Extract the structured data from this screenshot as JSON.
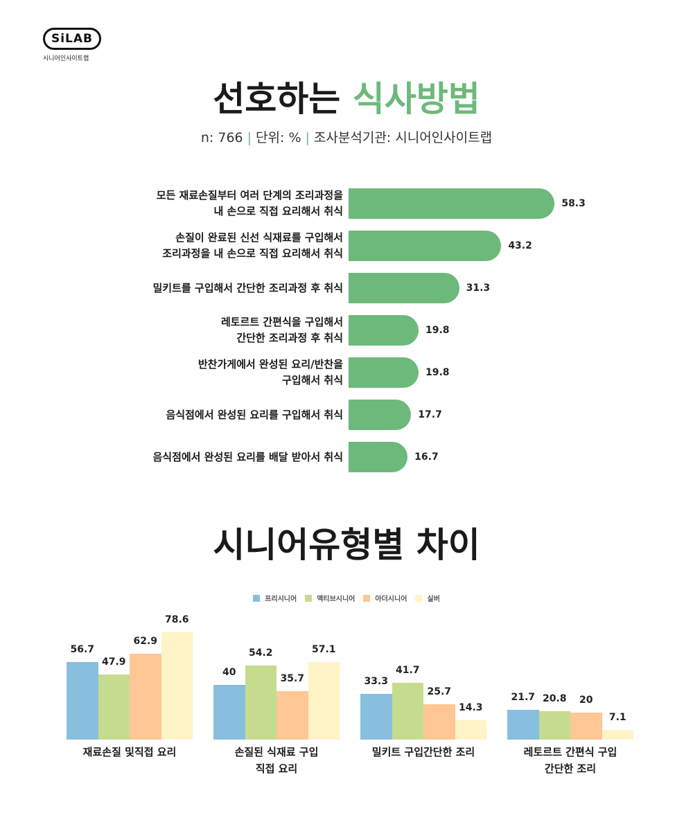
{
  "brand": {
    "logo_text": "SiLAB",
    "sub": "시니어인사이트랩"
  },
  "title": {
    "part1": "선호하는",
    "part2": "식사방법"
  },
  "subtitle": {
    "n": "n: 766",
    "unit": "단위: %",
    "source": "조사분석기관: 시니어인사이트랩",
    "separator": "|"
  },
  "colors": {
    "accent": "#6db97c",
    "pre": "#88bfdf",
    "active": "#c5dc8f",
    "other": "#fec794",
    "silver": "#fff3c8"
  },
  "chart_data": [
    {
      "type": "bar",
      "orientation": "horizontal",
      "title": "선호하는 식사방법",
      "categories": [
        "모든 재료손질부터 여러 단계의 조리과정을\n내 손으로 직접 요리해서 취식",
        "손질이 완료된 신선 식재료를 구입해서\n조리과정을 내 손으로 직접 요리해서 취식",
        "밀키트를 구입해서 간단한 조리과정 후 취식",
        "레토르트 간편식을 구입해서\n간단한 조리과정 후 취식",
        "반찬가게에서 완성된 요리/반찬을\n구입해서 취식",
        "음식점에서 완성된 요리를 구입해서 취식",
        "음식점에서 완성된 요리를 배달 받아서 취식"
      ],
      "values": [
        58.3,
        43.2,
        31.3,
        19.8,
        19.8,
        17.7,
        16.7
      ],
      "value_labels": [
        "58.3",
        "43.2",
        "31.3",
        "19.8",
        "19.8",
        "17.7",
        "16.7"
      ],
      "unit": "%"
    },
    {
      "type": "bar",
      "title": "시니어유형별 차이",
      "categories": [
        "재료손질 및직접 요리",
        "손질된 식재료 구입\n직접 요리",
        "밀키트 구입간단한 조리",
        "레토르트 간편식 구입\n간단한 조리"
      ],
      "series": [
        {
          "name": "프리시니어",
          "color": "#88bfdf",
          "values": [
            56.7,
            40,
            33.3,
            21.7
          ],
          "labels": [
            "56.7",
            "40",
            "33.3",
            "21.7"
          ]
        },
        {
          "name": "액티브시니어",
          "color": "#c5dc8f",
          "values": [
            47.9,
            54.2,
            41.7,
            20.8
          ],
          "labels": [
            "47.9",
            "54.2",
            "41.7",
            "20.8"
          ]
        },
        {
          "name": "아더시니어",
          "color": "#fec794",
          "values": [
            62.9,
            35.7,
            25.7,
            20
          ],
          "labels": [
            "62.9",
            "35.7",
            "25.7",
            "20"
          ]
        },
        {
          "name": "실버",
          "color": "#fff3c8",
          "values": [
            78.6,
            57.1,
            14.3,
            7.1
          ],
          "labels": [
            "78.6",
            "57.1",
            "14.3",
            "7.1"
          ]
        }
      ],
      "legend": "top-center",
      "grid": false
    }
  ]
}
